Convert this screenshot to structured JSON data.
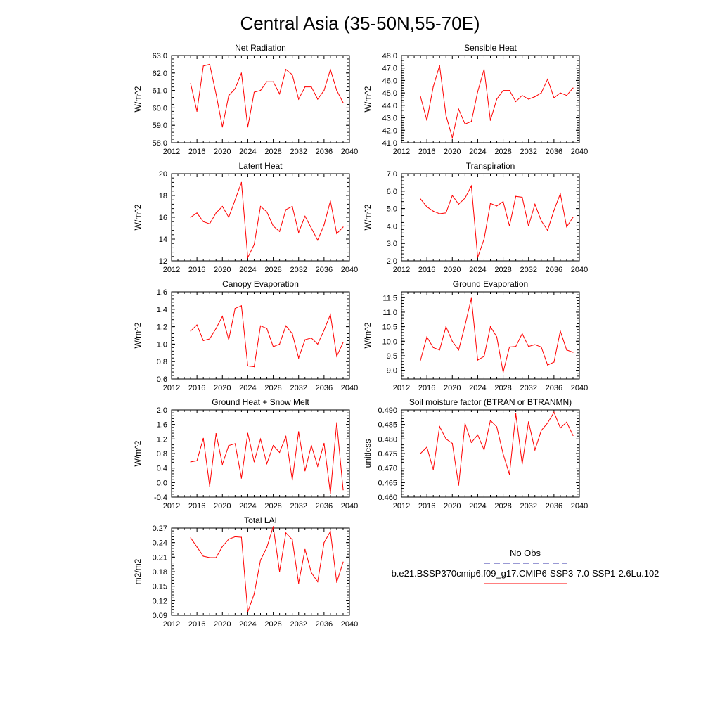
{
  "figure_title": "Central Asia (35-50N,55-70E)",
  "x_tick_labels": [
    "2012",
    "2016",
    "2020",
    "2024",
    "2028",
    "2032",
    "2036",
    "2040"
  ],
  "series_years": [
    2015,
    2016,
    2017,
    2018,
    2019,
    2020,
    2021,
    2022,
    2023,
    2024,
    2025,
    2026,
    2027,
    2028,
    2029,
    2030,
    2031,
    2032,
    2033,
    2034,
    2035,
    2036,
    2037,
    2038,
    2039
  ],
  "line_color": "#ff0000",
  "legend": {
    "obs_label": "No Obs",
    "obs_color": "#3333aa",
    "model_label": "b.e21.BSSP370cmip6.f09_g17.CMIP6-SSP3-7.0-SSP1-2.6Lu.102",
    "model_color": "#ff0000"
  },
  "chart_data": [
    {
      "type": "line",
      "title": "Net Radiation",
      "ylabel": "W/m^2",
      "xlim": [
        2012,
        2040
      ],
      "ylim": [
        58,
        63
      ],
      "yticks": [
        "58.0",
        "59.0",
        "60.0",
        "61.0",
        "62.0",
        "63.0"
      ],
      "series": [
        {
          "values": [
            61.4,
            59.8,
            62.4,
            62.5,
            60.8,
            58.9,
            60.7,
            61.1,
            62.0,
            58.9,
            60.9,
            61.0,
            61.5,
            61.5,
            60.8,
            62.2,
            61.9,
            60.5,
            61.2,
            61.2,
            60.5,
            61.0,
            62.2,
            61.0,
            60.3
          ]
        }
      ]
    },
    {
      "type": "line",
      "title": "Sensible Heat",
      "ylabel": "W/m^2",
      "xlim": [
        2012,
        2040
      ],
      "ylim": [
        41,
        48
      ],
      "yticks": [
        "41.0",
        "42.0",
        "43.0",
        "44.0",
        "45.0",
        "46.0",
        "47.0",
        "48.0"
      ],
      "series": [
        {
          "values": [
            44.7,
            42.8,
            45.5,
            47.2,
            43.2,
            41.4,
            43.7,
            42.5,
            42.7,
            45.1,
            46.9,
            42.8,
            44.5,
            45.2,
            45.2,
            44.3,
            44.8,
            44.5,
            44.7,
            45.0,
            46.1,
            44.6,
            45.0,
            44.8,
            45.4
          ]
        }
      ]
    },
    {
      "type": "line",
      "title": "Latent Heat",
      "ylabel": "W/m^2",
      "xlim": [
        2012,
        2040
      ],
      "ylim": [
        12,
        20
      ],
      "yticks": [
        "12",
        "14",
        "16",
        "18",
        "20"
      ],
      "series": [
        {
          "values": [
            16.0,
            16.4,
            15.6,
            15.4,
            16.4,
            17.0,
            16.0,
            17.6,
            19.2,
            12.3,
            13.5,
            17.0,
            16.5,
            15.2,
            14.7,
            16.7,
            17.0,
            14.6,
            16.1,
            15.0,
            13.9,
            15.3,
            17.5,
            14.5,
            15.1
          ]
        }
      ]
    },
    {
      "type": "line",
      "title": "Transpiration",
      "ylabel": "W/m^2",
      "xlim": [
        2012,
        2040
      ],
      "ylim": [
        2,
        7
      ],
      "yticks": [
        "2.0",
        "3.0",
        "4.0",
        "5.0",
        "6.0",
        "7.0"
      ],
      "series": [
        {
          "values": [
            5.55,
            5.1,
            4.85,
            4.7,
            4.75,
            5.75,
            5.25,
            5.6,
            6.3,
            2.2,
            3.25,
            5.3,
            5.15,
            5.4,
            4.0,
            5.7,
            5.65,
            4.0,
            5.25,
            4.3,
            3.75,
            4.9,
            5.85,
            3.95,
            4.5
          ]
        }
      ]
    },
    {
      "type": "line",
      "title": "Canopy Evaporation",
      "ylabel": "W/m^2",
      "xlim": [
        2012,
        2040
      ],
      "ylim": [
        0.6,
        1.6
      ],
      "yticks": [
        "0.6",
        "0.8",
        "1.0",
        "1.2",
        "1.4",
        "1.6"
      ],
      "series": [
        {
          "values": [
            1.15,
            1.22,
            1.04,
            1.06,
            1.18,
            1.32,
            1.05,
            1.41,
            1.44,
            0.75,
            0.74,
            1.21,
            1.18,
            0.97,
            1.0,
            1.21,
            1.12,
            0.84,
            1.05,
            1.07,
            1.0,
            1.16,
            1.34,
            0.86,
            1.02
          ]
        }
      ]
    },
    {
      "type": "line",
      "title": "Ground Evaporation",
      "ylabel": "W/m^2",
      "xlim": [
        2012,
        2040
      ],
      "ylim": [
        8.7,
        11.7
      ],
      "yticks": [
        "9.0",
        "9.5",
        "10.0",
        "10.5",
        "11.0",
        "11.5"
      ],
      "series": [
        {
          "values": [
            9.35,
            10.15,
            9.78,
            9.7,
            10.5,
            10.0,
            9.7,
            10.55,
            11.48,
            9.35,
            9.48,
            10.5,
            10.15,
            8.93,
            9.8,
            9.82,
            10.26,
            9.82,
            9.88,
            9.8,
            9.18,
            9.28,
            10.35,
            9.7,
            9.62
          ]
        }
      ]
    },
    {
      "type": "line",
      "title": "Ground Heat + Snow Melt",
      "ylabel": "W/m^2",
      "xlim": [
        2012,
        2040
      ],
      "ylim": [
        -0.4,
        2.0
      ],
      "yticks": [
        "-0.4",
        "0.0",
        "0.4",
        "0.8",
        "1.2",
        "1.6",
        "2.0"
      ],
      "series": [
        {
          "values": [
            0.57,
            0.6,
            1.22,
            -0.1,
            1.35,
            0.5,
            1.02,
            1.07,
            0.12,
            1.36,
            0.57,
            1.2,
            0.52,
            1.02,
            0.83,
            1.27,
            0.07,
            1.4,
            0.32,
            1.02,
            0.45,
            1.08,
            -0.3,
            1.65,
            -0.2
          ]
        }
      ]
    },
    {
      "type": "line",
      "title": "Soil moisture factor (BTRAN or BTRANMN)",
      "ylabel": "unitless",
      "xlim": [
        2012,
        2040
      ],
      "ylim": [
        0.46,
        0.49
      ],
      "yticks": [
        "0.460",
        "0.465",
        "0.470",
        "0.475",
        "0.480",
        "0.485",
        "0.490"
      ],
      "series": [
        {
          "values": [
            0.475,
            0.4772,
            0.4695,
            0.4843,
            0.48,
            0.4785,
            0.4641,
            0.4853,
            0.4788,
            0.4814,
            0.4762,
            0.4864,
            0.4842,
            0.4748,
            0.4678,
            0.4887,
            0.4714,
            0.4859,
            0.4762,
            0.4829,
            0.4855,
            0.4892,
            0.4838,
            0.4858,
            0.4812
          ]
        }
      ]
    },
    {
      "type": "line",
      "title": "Total LAI",
      "ylabel": "m2/m2",
      "xlim": [
        2012,
        2040
      ],
      "ylim": [
        0.09,
        0.27
      ],
      "yticks": [
        "0.09",
        "0.12",
        "0.15",
        "0.18",
        "0.21",
        "0.24",
        "0.27"
      ],
      "series": [
        {
          "values": [
            0.25,
            0.231,
            0.212,
            0.209,
            0.209,
            0.232,
            0.247,
            0.252,
            0.251,
            0.097,
            0.134,
            0.204,
            0.23,
            0.273,
            0.18,
            0.26,
            0.246,
            0.156,
            0.226,
            0.178,
            0.159,
            0.24,
            0.263,
            0.158,
            0.2
          ]
        }
      ]
    }
  ]
}
